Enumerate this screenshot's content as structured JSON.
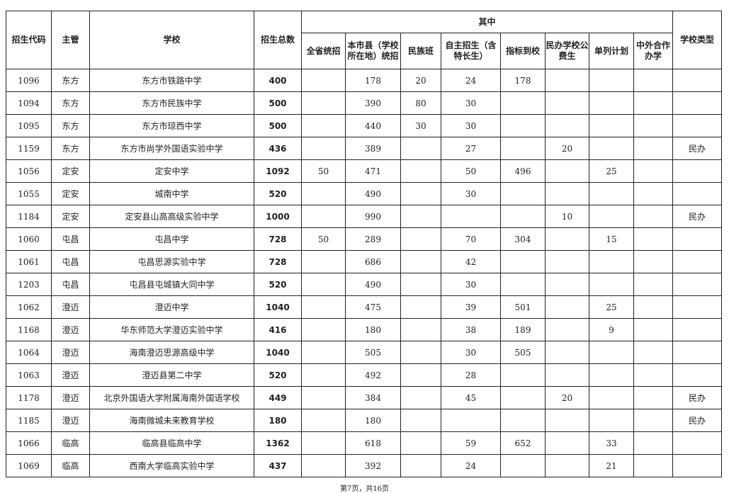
{
  "headers": {
    "code": "招生代码",
    "dept": "主管",
    "school": "学校",
    "total": "招生总数",
    "group": "其中",
    "sub": [
      "全省统招",
      "本市县（学校所在地）统招",
      "民族班",
      "自主招生（含特长生）",
      "指标到校",
      "民办学校公费生",
      "单列计划",
      "中外合作办学"
    ],
    "type": "学校类型"
  },
  "rows": [
    [
      "1096",
      "东方",
      "东方市铁路中学",
      "400",
      "",
      "178",
      "20",
      "24",
      "178",
      "",
      "",
      "",
      ""
    ],
    [
      "1094",
      "东方",
      "东方市民族中学",
      "500",
      "",
      "390",
      "80",
      "30",
      "",
      "",
      "",
      "",
      ""
    ],
    [
      "1095",
      "东方",
      "东方市琼西中学",
      "500",
      "",
      "440",
      "30",
      "30",
      "",
      "",
      "",
      "",
      ""
    ],
    [
      "1159",
      "东方",
      "东方市尚学外国语实验中学",
      "436",
      "",
      "389",
      "",
      "27",
      "",
      "20",
      "",
      "",
      "民办"
    ],
    [
      "1056",
      "定安",
      "定安中学",
      "1092",
      "50",
      "471",
      "",
      "50",
      "496",
      "",
      "25",
      "",
      ""
    ],
    [
      "1055",
      "定安",
      "城南中学",
      "520",
      "",
      "490",
      "",
      "30",
      "",
      "",
      "",
      "",
      ""
    ],
    [
      "1184",
      "定安",
      "定安县山高高级实验中学",
      "1000",
      "",
      "990",
      "",
      "",
      "",
      "10",
      "",
      "",
      "民办"
    ],
    [
      "1060",
      "屯昌",
      "屯昌中学",
      "728",
      "50",
      "289",
      "",
      "70",
      "304",
      "",
      "15",
      "",
      ""
    ],
    [
      "1061",
      "屯昌",
      "屯昌思源实验中学",
      "728",
      "",
      "686",
      "",
      "42",
      "",
      "",
      "",
      "",
      ""
    ],
    [
      "1203",
      "屯昌",
      "屯昌县屯城镇大同中学",
      "520",
      "",
      "490",
      "",
      "30",
      "",
      "",
      "",
      "",
      ""
    ],
    [
      "1062",
      "澄迈",
      "澄迈中学",
      "1040",
      "",
      "475",
      "",
      "39",
      "501",
      "",
      "25",
      "",
      ""
    ],
    [
      "1168",
      "澄迈",
      "华东师范大学澄迈实验中学",
      "416",
      "",
      "180",
      "",
      "38",
      "189",
      "",
      "9",
      "",
      ""
    ],
    [
      "1064",
      "澄迈",
      "海南澄迈思源高级中学",
      "1040",
      "",
      "505",
      "",
      "30",
      "505",
      "",
      "",
      "",
      ""
    ],
    [
      "1063",
      "澄迈",
      "澄迈县第二中学",
      "520",
      "",
      "492",
      "",
      "28",
      "",
      "",
      "",
      "",
      ""
    ],
    [
      "1178",
      "澄迈",
      "北京外国语大学附属海南外国语学校",
      "449",
      "",
      "384",
      "",
      "45",
      "",
      "20",
      "",
      "",
      "民办"
    ],
    [
      "1185",
      "澄迈",
      "海南微城未来教育学校",
      "180",
      "",
      "180",
      "",
      "",
      "",
      "",
      "",
      "",
      "民办"
    ],
    [
      "1066",
      "临高",
      "临高县临高中学",
      "1362",
      "",
      "618",
      "",
      "59",
      "652",
      "",
      "33",
      "",
      ""
    ],
    [
      "1069",
      "临高",
      "西南大学临高实验中学",
      "437",
      "",
      "392",
      "",
      "24",
      "",
      "",
      "21",
      "",
      ""
    ]
  ],
  "footer": "第7页，共16页"
}
